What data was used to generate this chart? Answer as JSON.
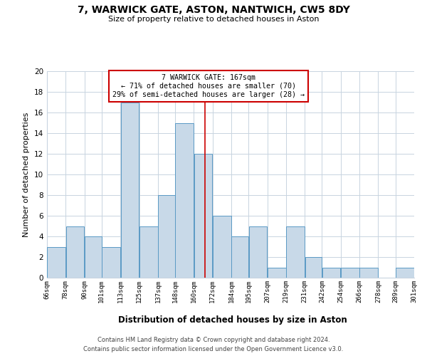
{
  "title": "7, WARWICK GATE, ASTON, NANTWICH, CW5 8DY",
  "subtitle": "Size of property relative to detached houses in Aston",
  "xlabel": "Distribution of detached houses by size in Aston",
  "ylabel": "Number of detached properties",
  "bin_edges": [
    66,
    78,
    90,
    101,
    113,
    125,
    137,
    148,
    160,
    172,
    184,
    195,
    207,
    219,
    231,
    242,
    254,
    266,
    278,
    289,
    301
  ],
  "bin_labels": [
    "66sqm",
    "78sqm",
    "90sqm",
    "101sqm",
    "113sqm",
    "125sqm",
    "137sqm",
    "148sqm",
    "160sqm",
    "172sqm",
    "184sqm",
    "195sqm",
    "207sqm",
    "219sqm",
    "231sqm",
    "242sqm",
    "254sqm",
    "266sqm",
    "278sqm",
    "289sqm",
    "301sqm"
  ],
  "counts": [
    3,
    5,
    4,
    3,
    17,
    5,
    8,
    15,
    12,
    6,
    4,
    5,
    1,
    5,
    2,
    1,
    1,
    1,
    0,
    1
  ],
  "bar_color": "#c8d9e8",
  "bar_edge_color": "#5a9ac5",
  "subject_value": 167,
  "subject_line_color": "#cc0000",
  "annotation_line1": "7 WARWICK GATE: 167sqm",
  "annotation_line2": "← 71% of detached houses are smaller (70)",
  "annotation_line3": "29% of semi-detached houses are larger (28) →",
  "annotation_box_edge_color": "#cc0000",
  "annotation_box_face_color": "#ffffff",
  "ylim": [
    0,
    20
  ],
  "yticks": [
    0,
    2,
    4,
    6,
    8,
    10,
    12,
    14,
    16,
    18,
    20
  ],
  "grid_color": "#c8d4e0",
  "footer1": "Contains HM Land Registry data © Crown copyright and database right 2024.",
  "footer2": "Contains public sector information licensed under the Open Government Licence v3.0.",
  "background_color": "#ffffff"
}
